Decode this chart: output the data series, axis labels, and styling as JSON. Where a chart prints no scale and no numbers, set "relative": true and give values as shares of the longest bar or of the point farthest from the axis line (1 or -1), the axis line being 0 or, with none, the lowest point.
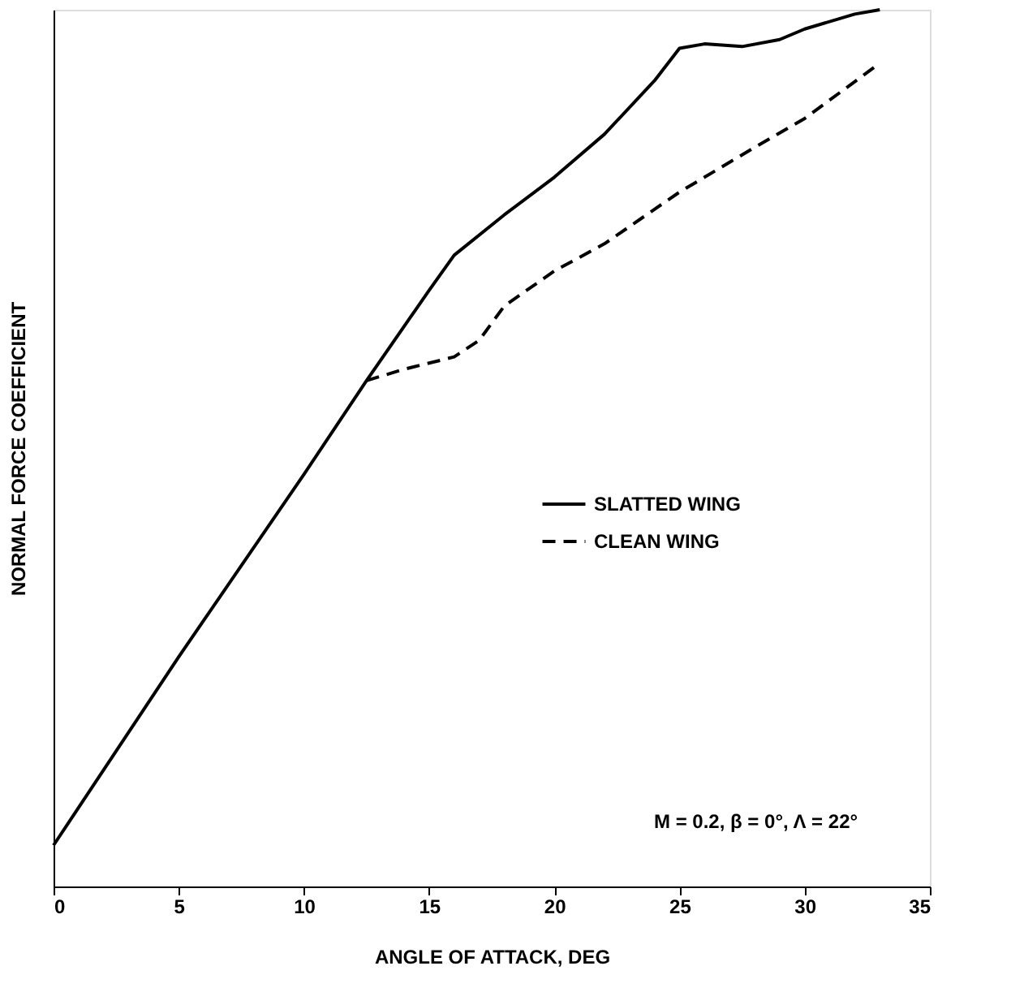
{
  "chart_data": {
    "type": "line",
    "relative": true,
    "xlabel": "ANGLE OF ATTACK, DEG",
    "ylabel": "NORMAL FORCE COEFFICIENT",
    "xlim": [
      0,
      35
    ],
    "xticks": [
      0,
      5,
      10,
      15,
      20,
      25,
      30,
      35
    ],
    "grid": false,
    "legend": "right",
    "annotations": [
      "M = 0.2, β = 0°, Λ = 22°"
    ],
    "series": [
      {
        "name": "SLATTED WING",
        "color": "#000000",
        "line_style": "solid",
        "x": [
          0,
          5,
          10,
          12.5,
          15,
          16,
          18,
          20,
          22,
          24,
          25,
          26,
          27.5,
          29,
          30,
          32,
          33
        ],
        "values": [
          0.047,
          0.262,
          0.47,
          0.577,
          0.68,
          0.72,
          0.766,
          0.809,
          0.858,
          0.919,
          0.956,
          0.961,
          0.958,
          0.966,
          0.978,
          0.995,
          1.0
        ]
      },
      {
        "name": "CLEAN WING",
        "color": "#000000",
        "line_style": "dashed",
        "x": [
          12.5,
          14,
          16,
          17,
          18,
          20,
          22,
          25,
          28,
          30,
          33
        ],
        "values": [
          0.577,
          0.59,
          0.604,
          0.623,
          0.662,
          0.702,
          0.733,
          0.792,
          0.843,
          0.876,
          0.939
        ]
      }
    ]
  }
}
